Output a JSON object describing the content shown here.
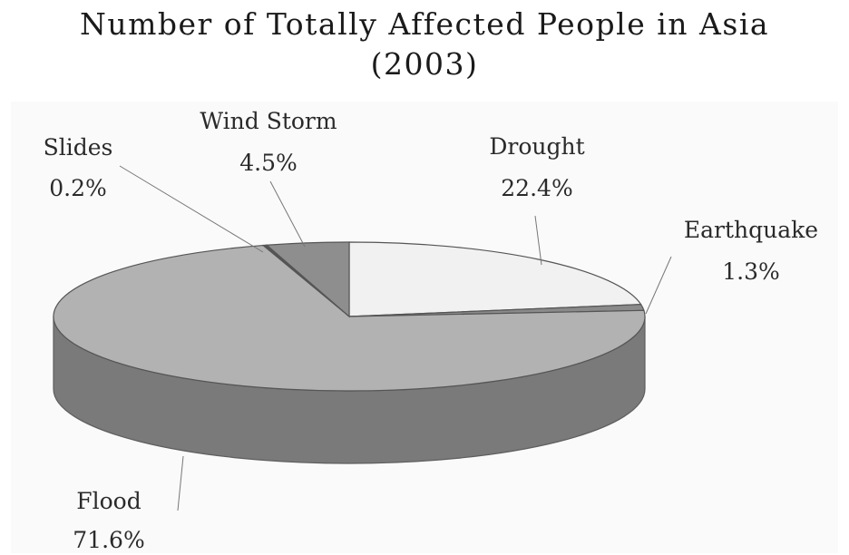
{
  "chart_data": {
    "type": "pie",
    "title": "Number of Totally Affected People in Asia",
    "subtitle": "(2003)",
    "slices": [
      {
        "label": "Drought",
        "value": 22.4,
        "value_label": "22.4%",
        "color": "#f1f1f1"
      },
      {
        "label": "Earthquake",
        "value": 1.3,
        "value_label": "1.3%",
        "color": "#8a8a8a"
      },
      {
        "label": "Flood",
        "value": 71.6,
        "value_label": "71.6%",
        "color": "#b2b2b2"
      },
      {
        "label": "Slides",
        "value": 0.2,
        "value_label": "0.2%",
        "color": "#555555"
      },
      {
        "label": "Wind Storm",
        "value": 4.5,
        "value_label": "4.5%",
        "color": "#8e8e8e"
      }
    ],
    "legend": "none",
    "style": "3d-exploded-none"
  },
  "colors": {
    "plot_background": "#fafafa",
    "pie_side": "#7a7a7a"
  }
}
